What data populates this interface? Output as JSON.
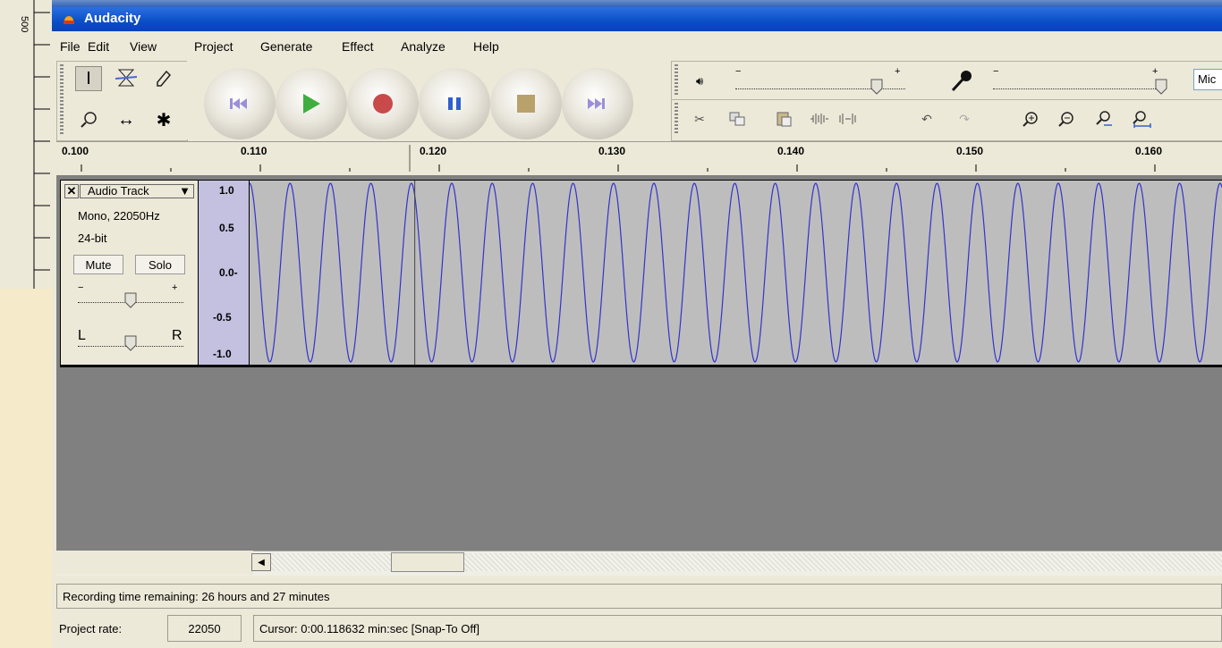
{
  "app": {
    "title": "Audacity",
    "icon": "audacity-icon"
  },
  "left_ruler": {
    "text": "500"
  },
  "menu": [
    {
      "label": "File"
    },
    {
      "label": "Edit"
    },
    {
      "label": "View"
    },
    {
      "label": "Project"
    },
    {
      "label": "Generate"
    },
    {
      "label": "Effect"
    },
    {
      "label": "Analyze"
    },
    {
      "label": "Help"
    }
  ],
  "tools": [
    "selection-tool",
    "envelope-tool",
    "draw-tool",
    "zoom-tool",
    "timeshift-tool",
    "multi-tool"
  ],
  "transport": [
    "skip-start",
    "play",
    "record",
    "pause",
    "stop",
    "skip-end"
  ],
  "colors": {
    "play": "#3fae3f",
    "record": "#c84a4a",
    "pause": "#2f5fd0",
    "stop": "#b9a16b",
    "skip": "#9c8fd8",
    "wave": "#3333cc",
    "title_bar": "#0a4ec7"
  },
  "meters": {
    "output_level": 0.9,
    "input_level": 1.0,
    "input_device": "Mic"
  },
  "ruler": {
    "ticks": [
      "0.100",
      "0.110",
      "0.120",
      "0.130",
      "0.140",
      "0.150",
      "0.160"
    ]
  },
  "track": {
    "name": "Audio Track",
    "info1": "Mono, 22050Hz",
    "info2": "24-bit",
    "mute": "Mute",
    "solo": "Solo",
    "pan_left": "L",
    "pan_right": "R",
    "scale": [
      "1.0",
      "0.5",
      "0.0-",
      "-0.5",
      "-1.0"
    ],
    "cursor_time": 0.118632
  },
  "status": {
    "message": "Recording time remaining: 26 hours and 27 minutes",
    "rate_label": "Project rate:",
    "rate_value": "22050",
    "cursor": "Cursor: 0:00.118632 min:sec  [Snap-To Off]"
  }
}
